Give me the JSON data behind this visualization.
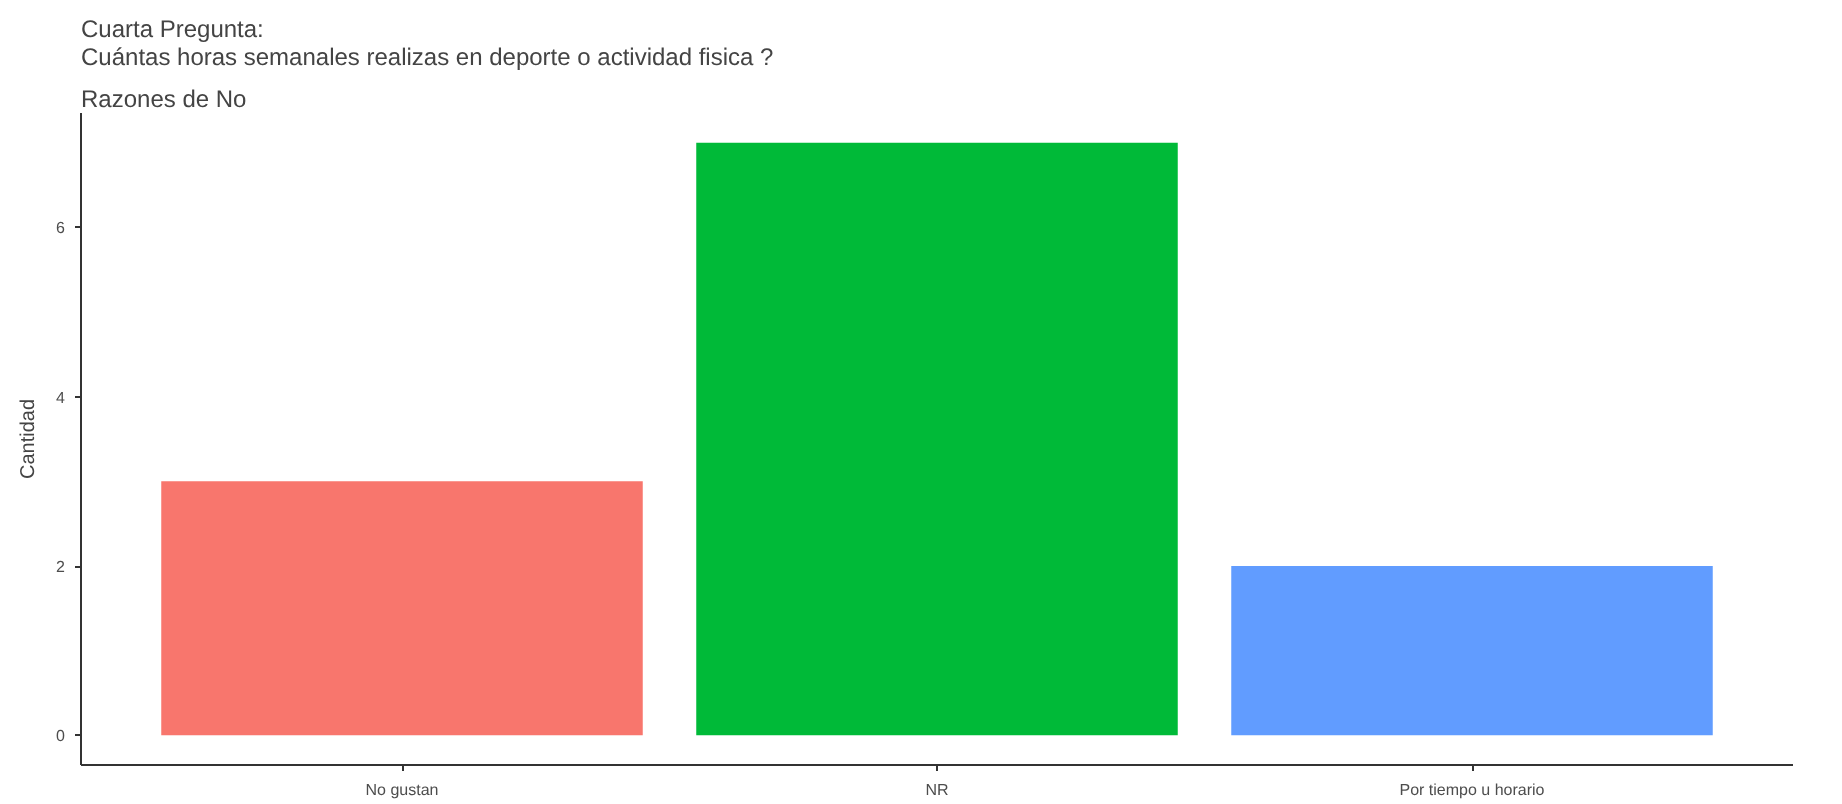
{
  "chart_data": {
    "type": "bar",
    "title": "Cuarta Pregunta:\nCuántas horas semanales realizas en deporte o actividad fisica ?",
    "subtitle": "Razones de No",
    "ylabel": "Cantidad",
    "categories": [
      "No gustan",
      "NR",
      "Por tiempo u horario"
    ],
    "values": [
      3,
      7,
      2
    ],
    "colors": [
      "#f8766d",
      "#00ba38",
      "#619cff"
    ],
    "ylim": [
      -0.35,
      7.35
    ],
    "yticks": [
      0,
      2,
      4,
      6
    ],
    "grid": false
  }
}
